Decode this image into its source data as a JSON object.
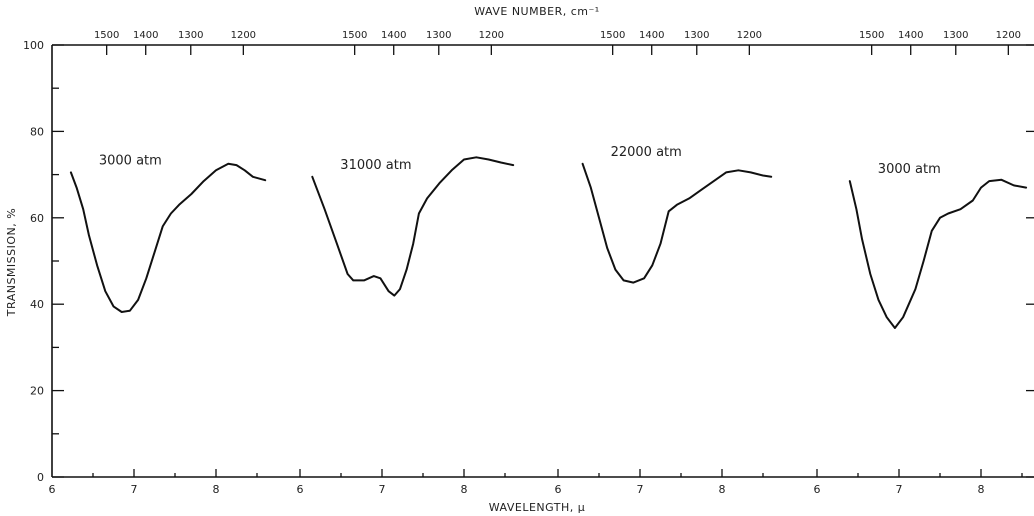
{
  "chart_data": {
    "type": "line",
    "title": "",
    "top_axis_label": "WAVE NUMBER, cm⁻¹",
    "xlabel": "WAVELENGTH, μ",
    "ylabel": "TRANSMISSION, %",
    "ylim": [
      0,
      100
    ],
    "y_ticks": [
      0,
      20,
      40,
      60,
      80,
      100
    ],
    "grid": false,
    "panels": [
      {
        "name": "3000 atm",
        "x_ticks": [
          6,
          7,
          8
        ],
        "wavenumber_ticks": [
          1500,
          1400,
          1300,
          1200
        ],
        "x": [
          6.23,
          6.3,
          6.38,
          6.45,
          6.55,
          6.65,
          6.75,
          6.85,
          6.95,
          7.05,
          7.15,
          7.25,
          7.35,
          7.45,
          7.55,
          7.7,
          7.85,
          8.0,
          8.15,
          8.25,
          8.35,
          8.45,
          8.6
        ],
        "values": [
          70.5,
          67,
          62,
          56,
          49,
          43,
          39.5,
          38.2,
          38.5,
          41,
          46,
          52,
          58,
          61,
          63,
          65.5,
          68.5,
          71,
          72.5,
          72.2,
          71,
          69.5,
          68.7
        ]
      },
      {
        "name": "31000 atm",
        "x_ticks": [
          6,
          7,
          8
        ],
        "wavenumber_ticks": [
          1500,
          1400,
          1300,
          1200
        ],
        "x": [
          6.15,
          6.3,
          6.45,
          6.58,
          6.65,
          6.78,
          6.9,
          6.98,
          7.08,
          7.15,
          7.22,
          7.3,
          7.38,
          7.45,
          7.55,
          7.7,
          7.85,
          8.0,
          8.15,
          8.3,
          8.45,
          8.6
        ],
        "values": [
          69.5,
          62,
          54,
          47,
          45.5,
          45.5,
          46.5,
          46,
          43,
          42,
          43.5,
          48,
          54,
          61,
          64.5,
          68,
          71,
          73.5,
          74,
          73.5,
          72.8,
          72.2
        ]
      },
      {
        "name": "22000 atm",
        "x_ticks": [
          6,
          7,
          8
        ],
        "wavenumber_ticks": [
          1500,
          1400,
          1300,
          1200
        ],
        "x": [
          6.3,
          6.4,
          6.5,
          6.6,
          6.7,
          6.8,
          6.92,
          7.05,
          7.15,
          7.25,
          7.35,
          7.45,
          7.6,
          7.75,
          7.9,
          8.05,
          8.2,
          8.35,
          8.5,
          8.6
        ],
        "values": [
          72.5,
          67,
          60,
          53,
          48,
          45.5,
          45,
          46,
          49,
          54,
          61.5,
          63,
          64.5,
          66.5,
          68.5,
          70.5,
          71,
          70.5,
          69.8,
          69.5
        ]
      },
      {
        "name": "3000 atm",
        "x_ticks": [
          6,
          7,
          8
        ],
        "wavenumber_ticks": [
          1500,
          1400,
          1300,
          1200
        ],
        "x": [
          6.4,
          6.48,
          6.55,
          6.65,
          6.75,
          6.85,
          6.95,
          7.05,
          7.12,
          7.2,
          7.3,
          7.4,
          7.5,
          7.6,
          7.75,
          7.9,
          8.0,
          8.1,
          8.25,
          8.4,
          8.55
        ],
        "values": [
          68.5,
          62,
          55,
          47,
          41,
          37,
          34.5,
          37,
          40,
          43.5,
          50,
          57,
          60,
          61,
          62,
          64,
          67,
          68.5,
          68.8,
          67.5,
          67
        ]
      }
    ]
  }
}
